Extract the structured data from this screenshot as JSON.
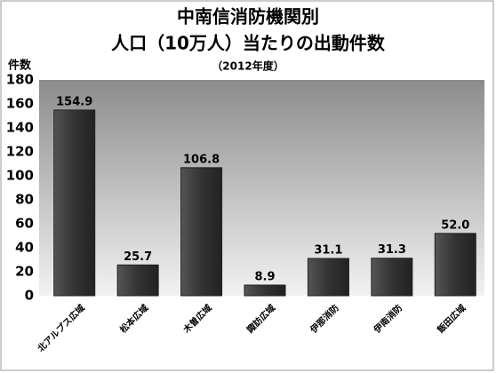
{
  "chart_data": {
    "type": "bar",
    "title": [
      "中南信消防機関別",
      "人口（10万人）当たりの出動件数"
    ],
    "subtitle": "（2012年度）",
    "y_label": "件数",
    "categories": [
      "北アルプス広域",
      "松本広域",
      "木曽広域",
      "諏訪広域",
      "伊那消防",
      "伊南消防",
      "飯田広域"
    ],
    "values": [
      154.9,
      25.7,
      106.8,
      8.9,
      31.1,
      31.3,
      52.0
    ],
    "value_labels": [
      "154.9",
      "25.7",
      "106.8",
      "8.9",
      "31.1",
      "31.3",
      "52.0"
    ],
    "color": "#3a3a3a",
    "ylim": [
      0,
      180
    ],
    "yticks": [
      0,
      20,
      40,
      60,
      80,
      100,
      120,
      140,
      160,
      180
    ],
    "grid": false
  }
}
